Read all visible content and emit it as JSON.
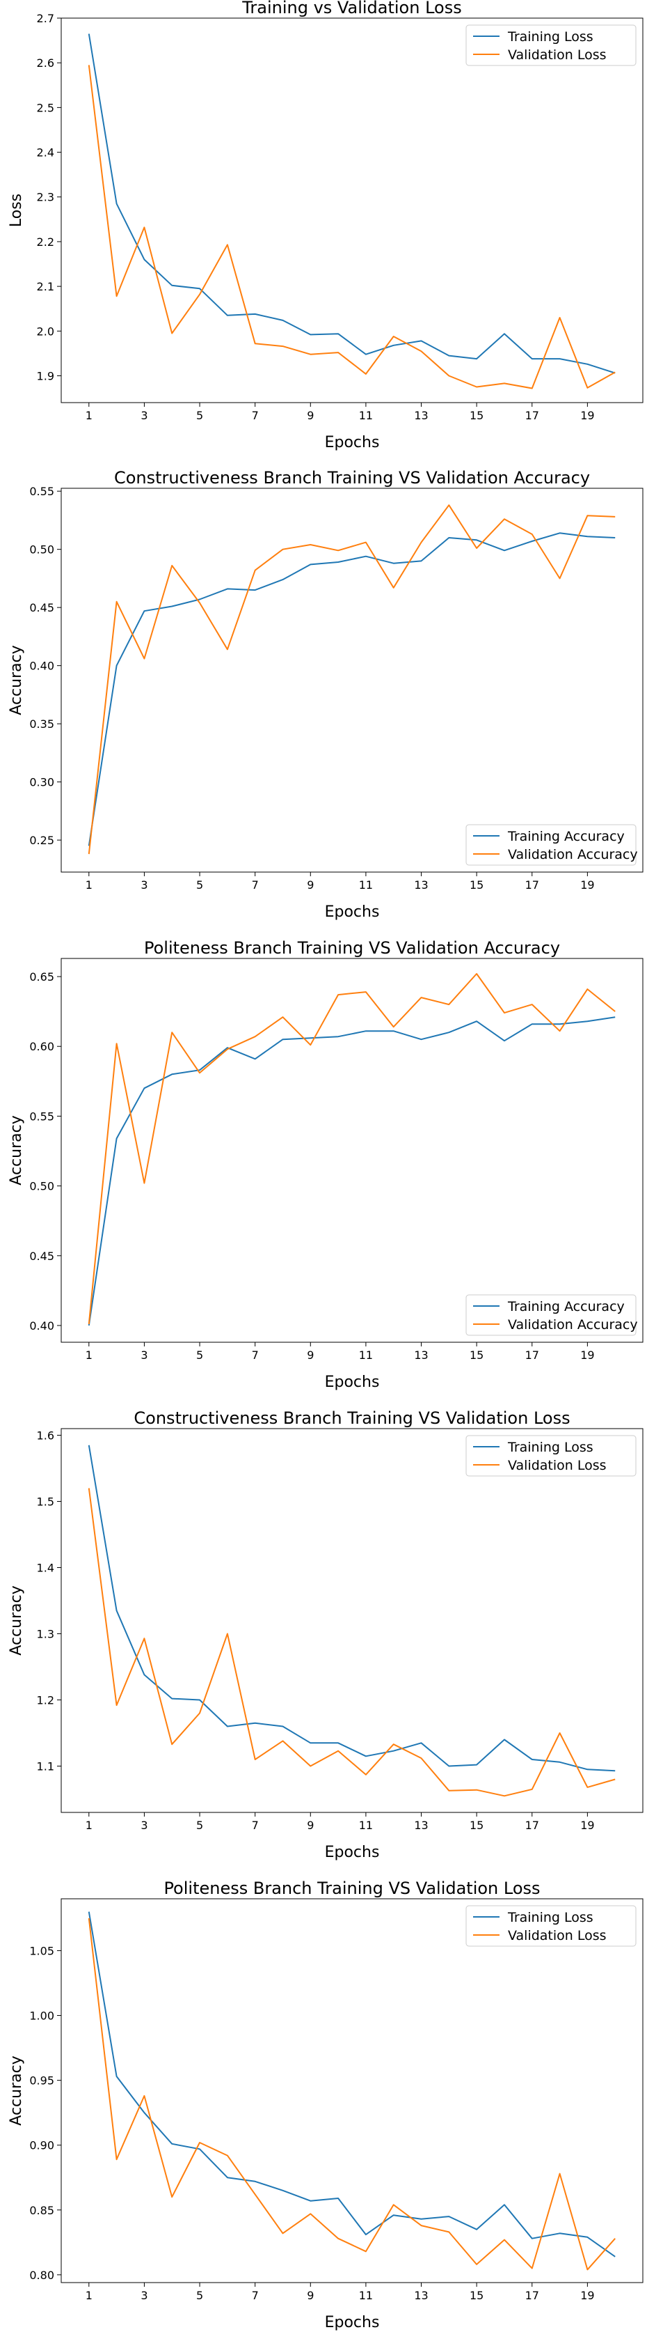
{
  "figure": {
    "chart_data": [
      {
        "type": "line",
        "title": "Training vs Validation Loss",
        "xlabel": "Epochs",
        "ylabel": "Loss",
        "x": [
          1,
          2,
          3,
          4,
          5,
          6,
          7,
          8,
          9,
          10,
          11,
          12,
          13,
          14,
          15,
          16,
          17,
          18,
          19,
          20
        ],
        "xticks": [
          1,
          3,
          5,
          7,
          9,
          11,
          13,
          15,
          17,
          19
        ],
        "xlim": [
          0,
          21
        ],
        "ylim": [
          1.84,
          2.7
        ],
        "yticks": [
          "1.9",
          "2.0",
          "2.1",
          "2.2",
          "2.3",
          "2.4",
          "2.5",
          "2.6",
          "2.7"
        ],
        "legend_position": "upper right",
        "series": [
          {
            "name": "Training Loss",
            "color": "#1f77b4",
            "values": [
              2.665,
              2.285,
              2.16,
              2.102,
              2.095,
              2.035,
              2.038,
              2.024,
              1.992,
              1.994,
              1.948,
              1.968,
              1.978,
              1.945,
              1.938,
              1.994,
              1.938,
              1.938,
              1.926,
              1.906
            ]
          },
          {
            "name": "Validation Loss",
            "color": "#ff7f0e",
            "values": [
              2.595,
              2.078,
              2.232,
              1.995,
              2.082,
              2.193,
              1.972,
              1.966,
              1.948,
              1.952,
              1.904,
              1.988,
              1.955,
              1.9,
              1.875,
              1.883,
              1.872,
              2.03,
              1.873,
              1.908
            ]
          }
        ]
      },
      {
        "type": "line",
        "title": "Constructiveness Branch Training VS Validation Accuracy",
        "xlabel": "Epochs",
        "ylabel": "Accuracy",
        "x": [
          1,
          2,
          3,
          4,
          5,
          6,
          7,
          8,
          9,
          10,
          11,
          12,
          13,
          14,
          15,
          16,
          17,
          18,
          19,
          20
        ],
        "xticks": [
          1,
          3,
          5,
          7,
          9,
          11,
          13,
          15,
          17,
          19
        ],
        "xlim": [
          0,
          21
        ],
        "ylim": [
          0.2225,
          0.5525
        ],
        "yticks": [
          "0.25",
          "0.30",
          "0.35",
          "0.40",
          "0.45",
          "0.50",
          "0.55"
        ],
        "legend_position": "lower right",
        "series": [
          {
            "name": "Training Accuracy",
            "color": "#1f77b4",
            "values": [
              0.245,
              0.4,
              0.447,
              0.451,
              0.457,
              0.466,
              0.465,
              0.474,
              0.487,
              0.489,
              0.494,
              0.488,
              0.49,
              0.51,
              0.508,
              0.499,
              0.507,
              0.514,
              0.511,
              0.51
            ]
          },
          {
            "name": "Validation Accuracy",
            "color": "#ff7f0e",
            "values": [
              0.238,
              0.455,
              0.406,
              0.486,
              0.454,
              0.414,
              0.482,
              0.5,
              0.504,
              0.499,
              0.506,
              0.467,
              0.506,
              0.538,
              0.501,
              0.526,
              0.513,
              0.475,
              0.529,
              0.528
            ]
          }
        ]
      },
      {
        "type": "line",
        "title": "Politeness Branch Training VS Validation Accuracy",
        "xlabel": "Epochs",
        "ylabel": "Accuracy",
        "x": [
          1,
          2,
          3,
          4,
          5,
          6,
          7,
          8,
          9,
          10,
          11,
          12,
          13,
          14,
          15,
          16,
          17,
          18,
          19,
          20
        ],
        "xticks": [
          1,
          3,
          5,
          7,
          9,
          11,
          13,
          15,
          17,
          19
        ],
        "xlim": [
          0,
          21
        ],
        "ylim": [
          0.388,
          0.663
        ],
        "yticks": [
          "0.40",
          "0.45",
          "0.50",
          "0.55",
          "0.60",
          "0.65"
        ],
        "legend_position": "lower right",
        "series": [
          {
            "name": "Training Accuracy",
            "color": "#1f77b4",
            "values": [
              0.4,
              0.534,
              0.57,
              0.58,
              0.583,
              0.599,
              0.591,
              0.605,
              0.606,
              0.607,
              0.611,
              0.611,
              0.605,
              0.61,
              0.618,
              0.604,
              0.616,
              0.616,
              0.618,
              0.621
            ]
          },
          {
            "name": "Validation Accuracy",
            "color": "#ff7f0e",
            "values": [
              0.401,
              0.602,
              0.502,
              0.61,
              0.581,
              0.598,
              0.607,
              0.621,
              0.601,
              0.637,
              0.639,
              0.614,
              0.635,
              0.63,
              0.652,
              0.624,
              0.63,
              0.611,
              0.641,
              0.625
            ]
          }
        ]
      },
      {
        "type": "line",
        "title": "Constructiveness Branch Training VS Validation Loss",
        "xlabel": "Epochs",
        "ylabel": "Accuracy",
        "x": [
          1,
          2,
          3,
          4,
          5,
          6,
          7,
          8,
          9,
          10,
          11,
          12,
          13,
          14,
          15,
          16,
          17,
          18,
          19,
          20
        ],
        "xticks": [
          1,
          3,
          5,
          7,
          9,
          11,
          13,
          15,
          17,
          19
        ],
        "xlim": [
          0,
          21
        ],
        "ylim": [
          1.03,
          1.61
        ],
        "yticks": [
          "1.1",
          "1.2",
          "1.3",
          "1.4",
          "1.5",
          "1.6"
        ],
        "legend_position": "upper right",
        "series": [
          {
            "name": "Training Loss",
            "color": "#1f77b4",
            "values": [
              1.585,
              1.335,
              1.238,
              1.202,
              1.2,
              1.16,
              1.165,
              1.16,
              1.135,
              1.135,
              1.115,
              1.123,
              1.135,
              1.1,
              1.102,
              1.14,
              1.11,
              1.106,
              1.095,
              1.093
            ]
          },
          {
            "name": "Validation Loss",
            "color": "#ff7f0e",
            "values": [
              1.52,
              1.192,
              1.293,
              1.133,
              1.18,
              1.3,
              1.11,
              1.138,
              1.1,
              1.123,
              1.087,
              1.133,
              1.112,
              1.063,
              1.064,
              1.055,
              1.065,
              1.15,
              1.068,
              1.08
            ]
          }
        ]
      },
      {
        "type": "line",
        "title": "Politeness Branch Training VS Validation Loss",
        "xlabel": "Epochs",
        "ylabel": "Accuracy",
        "x": [
          1,
          2,
          3,
          4,
          5,
          6,
          7,
          8,
          9,
          10,
          11,
          12,
          13,
          14,
          15,
          16,
          17,
          18,
          19,
          20
        ],
        "xticks": [
          1,
          3,
          5,
          7,
          9,
          11,
          13,
          15,
          17,
          19
        ],
        "xlim": [
          0,
          21
        ],
        "ylim": [
          0.794,
          1.09
        ],
        "yticks": [
          "0.80",
          "0.85",
          "0.90",
          "0.95",
          "1.00",
          "1.05"
        ],
        "legend_position": "upper right",
        "series": [
          {
            "name": "Training Loss",
            "color": "#1f77b4",
            "values": [
              1.08,
              0.953,
              0.925,
              0.901,
              0.897,
              0.875,
              0.872,
              0.865,
              0.857,
              0.859,
              0.831,
              0.846,
              0.843,
              0.845,
              0.835,
              0.854,
              0.828,
              0.832,
              0.829,
              0.814
            ]
          },
          {
            "name": "Validation Loss",
            "color": "#ff7f0e",
            "values": [
              1.075,
              0.889,
              0.938,
              0.86,
              0.902,
              0.892,
              0.862,
              0.832,
              0.847,
              0.828,
              0.818,
              0.854,
              0.838,
              0.833,
              0.808,
              0.827,
              0.805,
              0.878,
              0.804,
              0.828
            ]
          }
        ]
      }
    ]
  }
}
